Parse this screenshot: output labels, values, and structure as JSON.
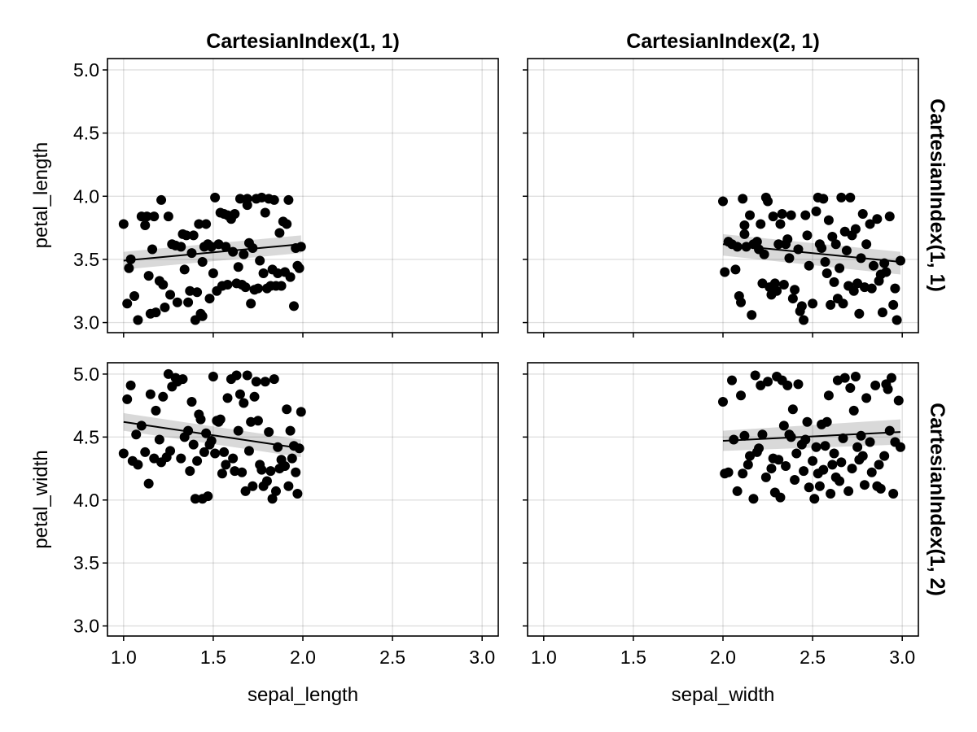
{
  "chart_data": {
    "type": "scatter",
    "layout": "facet-grid 2x2",
    "column_titles": [
      "CartesianIndex(1, 1)",
      "CartesianIndex(2, 1)"
    ],
    "row_titles": [
      "CartesianIndex(1, 1)",
      "CartesianIndex(1, 2)"
    ],
    "x_ticks": [
      "1.0",
      "1.5",
      "2.0",
      "2.5",
      "3.0"
    ],
    "x_tick_values": [
      1.0,
      1.5,
      2.0,
      2.5,
      3.0
    ],
    "y_ticks": [
      "3.0",
      "3.5",
      "4.0",
      "4.5",
      "5.0"
    ],
    "y_tick_values": [
      3.0,
      3.5,
      4.0,
      4.5,
      5.0
    ],
    "xlim": [
      0.91,
      3.09
    ],
    "ylim": [
      2.92,
      5.09
    ],
    "grid": true,
    "marker_color": "#000000",
    "band_color": "#e6e6e6",
    "xlabels": [
      "sepal_length",
      "sepal_width"
    ],
    "ylabels": [
      "petal_length",
      "petal_width"
    ],
    "panels": [
      {
        "x": [
          1.0,
          1.03,
          1.04,
          1.06,
          1.08,
          1.1,
          1.12,
          1.13,
          1.15,
          1.16,
          1.17,
          1.18,
          1.2,
          1.21,
          1.22,
          1.23,
          1.25,
          1.27,
          1.29,
          1.3,
          1.32,
          1.33,
          1.34,
          1.35,
          1.36,
          1.38,
          1.39,
          1.4,
          1.41,
          1.42,
          1.43,
          1.44,
          1.45,
          1.46,
          1.47,
          1.48,
          1.49,
          1.5,
          1.51,
          1.52,
          1.53,
          1.54,
          1.55,
          1.56,
          1.57,
          1.58,
          1.6,
          1.61,
          1.62,
          1.63,
          1.64,
          1.65,
          1.66,
          1.67,
          1.68,
          1.69,
          1.7,
          1.71,
          1.72,
          1.73,
          1.74,
          1.75,
          1.76,
          1.77,
          1.78,
          1.8,
          1.81,
          1.82,
          1.83,
          1.84,
          1.85,
          1.86,
          1.87,
          1.88,
          1.9,
          1.91,
          1.92,
          1.93,
          1.95,
          1.96,
          1.97,
          1.98,
          1.99,
          1.02,
          1.14,
          1.26,
          1.37,
          1.44,
          1.58,
          1.69,
          1.79,
          1.89
        ],
        "y": [
          3.78,
          3.43,
          3.5,
          3.21,
          3.02,
          3.84,
          3.77,
          3.84,
          3.07,
          3.58,
          3.84,
          3.08,
          3.33,
          3.97,
          3.3,
          3.12,
          3.84,
          3.62,
          3.61,
          3.16,
          3.6,
          3.7,
          3.42,
          3.69,
          3.16,
          3.55,
          3.69,
          3.02,
          3.24,
          3.78,
          3.07,
          3.48,
          3.6,
          3.78,
          3.62,
          3.19,
          3.6,
          3.39,
          3.99,
          3.25,
          3.62,
          3.87,
          3.29,
          3.86,
          3.6,
          3.3,
          3.82,
          3.56,
          3.86,
          3.31,
          3.44,
          3.98,
          3.3,
          3.54,
          3.28,
          3.98,
          3.63,
          3.15,
          3.59,
          3.26,
          3.98,
          3.27,
          3.49,
          3.99,
          3.39,
          3.27,
          3.98,
          3.29,
          3.42,
          3.97,
          3.29,
          3.39,
          3.71,
          3.29,
          3.4,
          3.78,
          3.97,
          3.36,
          3.13,
          3.59,
          3.45,
          3.43,
          3.6,
          3.15,
          3.37,
          3.22,
          3.25,
          3.05,
          3.85,
          3.93,
          3.87,
          3.8
        ],
        "fit": {
          "x": [
            1.0,
            1.99
          ],
          "y": [
            3.49,
            3.62
          ],
          "ci_low_start": 3.42,
          "ci_high_start": 3.56,
          "ci_low_end": 3.55,
          "ci_high_end": 3.69
        }
      },
      {
        "x": [
          2.0,
          2.01,
          2.03,
          2.05,
          2.07,
          2.08,
          2.09,
          2.1,
          2.11,
          2.12,
          2.13,
          2.15,
          2.16,
          2.17,
          2.19,
          2.2,
          2.21,
          2.22,
          2.24,
          2.25,
          2.26,
          2.27,
          2.28,
          2.29,
          2.3,
          2.31,
          2.32,
          2.33,
          2.34,
          2.35,
          2.37,
          2.38,
          2.39,
          2.4,
          2.42,
          2.44,
          2.45,
          2.46,
          2.47,
          2.48,
          2.5,
          2.52,
          2.53,
          2.54,
          2.56,
          2.57,
          2.58,
          2.59,
          2.6,
          2.61,
          2.62,
          2.63,
          2.64,
          2.65,
          2.66,
          2.67,
          2.69,
          2.7,
          2.71,
          2.72,
          2.73,
          2.74,
          2.75,
          2.76,
          2.77,
          2.78,
          2.8,
          2.82,
          2.83,
          2.84,
          2.86,
          2.88,
          2.89,
          2.9,
          2.91,
          2.93,
          2.95,
          2.96,
          2.97,
          2.99,
          2.12,
          2.23,
          2.36,
          2.43,
          2.55,
          2.68,
          2.79,
          2.87
        ],
        "y": [
          3.96,
          3.4,
          3.64,
          3.62,
          3.42,
          3.6,
          3.21,
          3.16,
          3.98,
          3.7,
          3.6,
          3.85,
          3.06,
          3.62,
          3.64,
          3.58,
          3.78,
          3.31,
          3.99,
          3.96,
          3.28,
          3.22,
          3.84,
          3.31,
          3.25,
          3.62,
          3.78,
          3.86,
          3.3,
          3.62,
          3.51,
          3.85,
          3.19,
          3.26,
          3.58,
          3.13,
          3.02,
          3.85,
          3.69,
          3.45,
          3.15,
          3.88,
          3.99,
          3.62,
          3.98,
          3.48,
          3.39,
          3.81,
          3.14,
          3.68,
          3.32,
          3.62,
          3.19,
          3.43,
          3.99,
          3.15,
          3.57,
          3.29,
          3.99,
          3.69,
          3.25,
          3.74,
          3.31,
          3.07,
          3.51,
          3.86,
          3.62,
          3.78,
          3.27,
          3.45,
          3.82,
          3.38,
          3.08,
          3.47,
          3.4,
          3.84,
          3.14,
          3.27,
          3.02,
          3.49,
          3.77,
          3.54,
          3.66,
          3.09,
          3.59,
          3.72,
          3.28,
          3.33
        ],
        "fit": {
          "x": [
            2.0,
            2.99
          ],
          "y": [
            3.62,
            3.48
          ],
          "ci_low_start": 3.53,
          "ci_high_start": 3.7,
          "ci_low_end": 3.38,
          "ci_high_end": 3.56
        }
      },
      {
        "x": [
          1.0,
          1.02,
          1.04,
          1.05,
          1.07,
          1.1,
          1.12,
          1.14,
          1.15,
          1.17,
          1.18,
          1.2,
          1.21,
          1.22,
          1.24,
          1.25,
          1.27,
          1.29,
          1.3,
          1.32,
          1.33,
          1.34,
          1.36,
          1.37,
          1.39,
          1.4,
          1.41,
          1.42,
          1.43,
          1.44,
          1.45,
          1.46,
          1.47,
          1.48,
          1.49,
          1.5,
          1.51,
          1.52,
          1.53,
          1.55,
          1.56,
          1.57,
          1.58,
          1.6,
          1.61,
          1.62,
          1.63,
          1.64,
          1.66,
          1.67,
          1.68,
          1.69,
          1.7,
          1.71,
          1.72,
          1.73,
          1.74,
          1.75,
          1.76,
          1.77,
          1.78,
          1.79,
          1.8,
          1.82,
          1.83,
          1.84,
          1.85,
          1.86,
          1.87,
          1.88,
          1.9,
          1.91,
          1.92,
          1.93,
          1.95,
          1.96,
          1.97,
          1.98,
          1.99,
          1.08,
          1.26,
          1.38,
          1.54,
          1.65,
          1.81,
          1.94
        ],
        "y": [
          4.37,
          4.8,
          4.91,
          4.31,
          4.52,
          4.59,
          4.38,
          4.13,
          4.84,
          4.33,
          4.71,
          4.48,
          4.3,
          4.82,
          4.34,
          5.0,
          4.9,
          4.97,
          4.94,
          4.33,
          4.96,
          4.5,
          4.55,
          4.23,
          4.44,
          4.01,
          4.31,
          4.68,
          4.64,
          4.01,
          4.38,
          4.53,
          4.03,
          4.44,
          4.47,
          4.98,
          4.37,
          4.63,
          4.62,
          4.21,
          4.38,
          4.28,
          4.81,
          4.96,
          4.33,
          4.23,
          4.99,
          4.55,
          4.22,
          4.77,
          4.07,
          4.99,
          4.39,
          4.62,
          4.11,
          4.82,
          4.94,
          4.63,
          4.28,
          4.24,
          4.11,
          4.94,
          4.15,
          4.23,
          4.01,
          4.96,
          4.07,
          4.42,
          4.25,
          4.32,
          4.27,
          4.72,
          4.11,
          4.55,
          4.43,
          4.22,
          4.05,
          4.41,
          4.7,
          4.28,
          4.39,
          4.78,
          4.64,
          4.84,
          4.54,
          4.33
        ],
        "fit": {
          "x": [
            1.0,
            1.99
          ],
          "y": [
            4.62,
            4.41
          ],
          "ci_low_start": 4.55,
          "ci_high_start": 4.69,
          "ci_low_end": 4.34,
          "ci_high_end": 4.48
        }
      },
      {
        "x": [
          2.0,
          2.01,
          2.03,
          2.05,
          2.06,
          2.08,
          2.1,
          2.11,
          2.12,
          2.14,
          2.15,
          2.17,
          2.18,
          2.2,
          2.21,
          2.22,
          2.24,
          2.25,
          2.27,
          2.28,
          2.29,
          2.3,
          2.31,
          2.32,
          2.33,
          2.34,
          2.35,
          2.36,
          2.38,
          2.39,
          2.4,
          2.41,
          2.42,
          2.44,
          2.45,
          2.46,
          2.47,
          2.48,
          2.5,
          2.51,
          2.52,
          2.53,
          2.55,
          2.56,
          2.57,
          2.58,
          2.59,
          2.6,
          2.61,
          2.62,
          2.63,
          2.65,
          2.66,
          2.67,
          2.68,
          2.7,
          2.71,
          2.72,
          2.73,
          2.74,
          2.75,
          2.76,
          2.77,
          2.79,
          2.8,
          2.82,
          2.83,
          2.85,
          2.86,
          2.87,
          2.88,
          2.9,
          2.91,
          2.93,
          2.94,
          2.95,
          2.96,
          2.98,
          2.99,
          2.19,
          2.37,
          2.54,
          2.64,
          2.78,
          2.92
        ],
        "y": [
          4.78,
          4.21,
          4.22,
          4.95,
          4.48,
          4.07,
          4.83,
          4.21,
          4.51,
          4.28,
          4.35,
          4.01,
          4.99,
          4.41,
          4.91,
          4.52,
          4.18,
          4.94,
          4.25,
          4.33,
          4.06,
          4.98,
          4.32,
          4.02,
          4.95,
          4.59,
          4.27,
          4.91,
          4.5,
          4.72,
          4.16,
          4.37,
          4.92,
          4.44,
          4.23,
          4.48,
          4.62,
          4.1,
          4.31,
          4.01,
          4.42,
          4.21,
          4.6,
          4.24,
          4.43,
          4.62,
          4.83,
          4.05,
          4.28,
          4.37,
          4.18,
          4.15,
          4.3,
          4.49,
          4.97,
          4.07,
          4.89,
          4.25,
          4.71,
          4.98,
          4.42,
          4.32,
          4.51,
          4.12,
          4.81,
          4.46,
          4.22,
          4.91,
          4.11,
          4.28,
          4.09,
          4.35,
          4.92,
          4.55,
          4.97,
          4.05,
          4.46,
          4.79,
          4.42,
          4.38,
          4.52,
          4.11,
          4.95,
          4.35,
          4.88
        ],
        "fit": {
          "x": [
            2.0,
            2.99
          ],
          "y": [
            4.47,
            4.54
          ],
          "ci_low_start": 4.39,
          "ci_high_start": 4.55,
          "ci_low_end": 4.44,
          "ci_high_end": 4.64
        }
      }
    ]
  }
}
